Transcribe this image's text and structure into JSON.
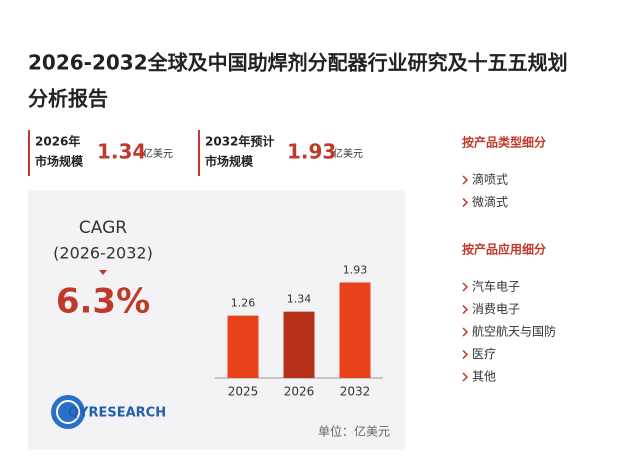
{
  "header": {
    "title_lines": [
      "2026-2032全球及中国助焊剂分配器行业研究及十五五规划",
      "分析报告"
    ]
  },
  "kpis": [
    {
      "label_lines": [
        "2026年",
        "市场规模"
      ],
      "value": "1.34",
      "unit": "亿美元"
    },
    {
      "label_lines": [
        "2032年预计",
        "市场规模"
      ],
      "value": "1.93",
      "unit": "亿美元"
    }
  ],
  "cagr": {
    "label": "CAGR",
    "period": "(2026-2032)",
    "value": "6.3%"
  },
  "unit_note": "单位：亿美元",
  "logo": "QYRESEARCH",
  "segments": [
    {
      "heading": "按产品类型细分",
      "items": [
        "滴喷式",
        "微滴式"
      ]
    },
    {
      "heading": "按产品应用细分",
      "items": [
        "汽车电子",
        "消费电子",
        "航空航天与国防",
        "医疗",
        "其他"
      ]
    }
  ],
  "chart_data": {
    "type": "bar",
    "categories": [
      "2025",
      "2026",
      "2032"
    ],
    "values": [
      1.26,
      1.34,
      1.93
    ],
    "colors": [
      "#e8431b",
      "#b7301a",
      "#e8431b"
    ],
    "ylim": [
      0,
      2
    ]
  }
}
